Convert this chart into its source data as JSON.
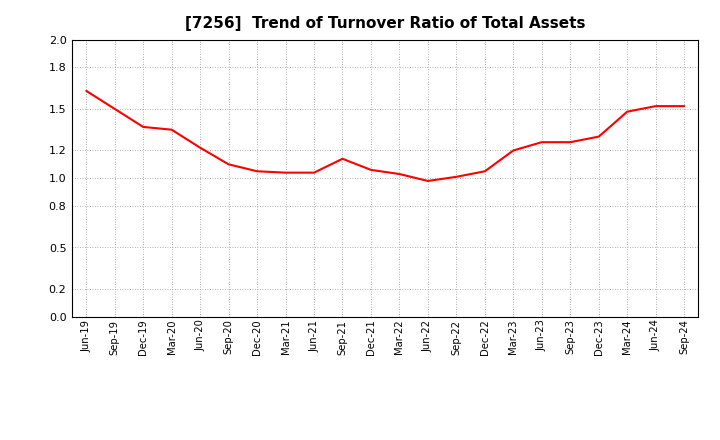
{
  "title": "[7256]  Trend of Turnover Ratio of Total Assets",
  "title_fontsize": 11,
  "line_color": "#FF0000",
  "line_width": 1.5,
  "background_color": "#FFFFFF",
  "grid_color": "#999999",
  "ylim": [
    0.0,
    2.0
  ],
  "yticks": [
    0.0,
    0.2,
    0.5,
    0.8,
    1.0,
    1.2,
    1.5,
    1.8,
    2.0
  ],
  "x_labels": [
    "Jun-19",
    "Sep-19",
    "Dec-19",
    "Mar-20",
    "Jun-20",
    "Sep-20",
    "Dec-20",
    "Mar-21",
    "Jun-21",
    "Sep-21",
    "Dec-21",
    "Mar-22",
    "Jun-22",
    "Sep-22",
    "Dec-22",
    "Mar-23",
    "Jun-23",
    "Sep-23",
    "Dec-23",
    "Mar-24",
    "Jun-24",
    "Sep-24"
  ],
  "y_values": [
    1.63,
    1.5,
    1.37,
    1.35,
    1.22,
    1.1,
    1.05,
    1.04,
    1.04,
    1.14,
    1.06,
    1.03,
    0.98,
    1.01,
    1.05,
    1.2,
    1.26,
    1.26,
    1.3,
    1.48,
    1.52,
    1.52
  ]
}
